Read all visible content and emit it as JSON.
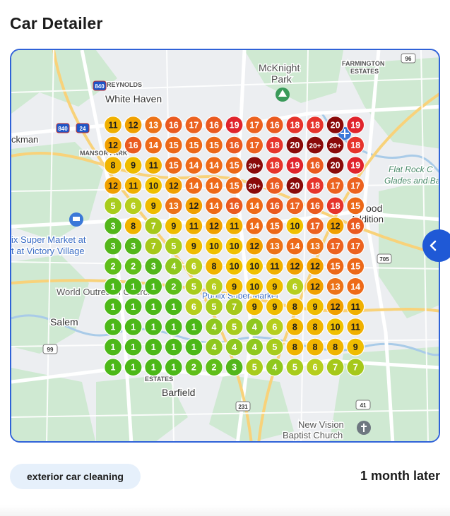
{
  "card": {
    "title": "Car Detailer",
    "keyword": "exterior car cleaning",
    "time_label": "1 month later"
  },
  "map": {
    "place_labels": [
      {
        "key": "mcknight",
        "text": "McKnight"
      },
      {
        "key": "park",
        "text": "Park"
      },
      {
        "key": "farmington",
        "text": "FARMINGTON"
      },
      {
        "key": "estates_top",
        "text": "ESTATES"
      },
      {
        "key": "reynolds",
        "text": "REYNOLDS"
      },
      {
        "key": "white_haven",
        "text": "White Haven"
      },
      {
        "key": "ckman",
        "text": "ckman"
      },
      {
        "key": "mansor",
        "text": "MANSOR PARK"
      },
      {
        "key": "flat_rock",
        "text": "Flat Rock C"
      },
      {
        "key": "glades",
        "text": "Glades and Barr"
      },
      {
        "key": "ood",
        "text": "ood"
      },
      {
        "key": "addition",
        "text": "Addition"
      },
      {
        "key": "super_market_1",
        "text": "ix Super Market at"
      },
      {
        "key": "super_market_2",
        "text": "t at Victory Village"
      },
      {
        "key": "world_outreach",
        "text": "World Outreach Church"
      },
      {
        "key": "salem",
        "text": "Salem"
      },
      {
        "key": "estates_bottom",
        "text": "ESTATES"
      },
      {
        "key": "barfield",
        "text": "Barfield"
      },
      {
        "key": "new_vision",
        "text": "New Vision"
      },
      {
        "key": "baptist",
        "text": "Baptist Church"
      },
      {
        "key": "publix",
        "text": "Publix Super Market"
      }
    ],
    "road_shields": [
      {
        "key": "i840_top",
        "text": "840"
      },
      {
        "key": "i840_left",
        "text": "840"
      },
      {
        "key": "i24",
        "text": "24"
      },
      {
        "key": "r96",
        "text": "96"
      },
      {
        "key": "r705",
        "text": "705"
      },
      {
        "key": "r99",
        "text": "99"
      },
      {
        "key": "r231",
        "text": "231"
      },
      {
        "key": "r41",
        "text": "41"
      }
    ],
    "icons": [
      "tree-icon",
      "shopping-cart-icon",
      "place-of-worship-icon",
      "airport-icon"
    ],
    "colors": {
      "1": "#4cb818",
      "2": "#5fbe1a",
      "3": "#53b61a",
      "4": "#8fc81e",
      "5": "#a8cc1c",
      "6": "#b6ce1e",
      "7": "#a6c81a",
      "8": "#f0b400",
      "9": "#efbc00",
      "10": "#f0c000",
      "11": "#f0b000",
      "12": "#f0a000",
      "13": "#ec7218",
      "14": "#ee6a18",
      "15": "#ec6818",
      "16": "#ea5a20",
      "17": "#ec6220",
      "18": "#e6342c",
      "19": "#e0242c",
      "20": "#8a0a0a",
      "20+": "#8a0a0a"
    }
  },
  "ranking_grid": {
    "rows": 13,
    "cols": 13,
    "values": [
      [
        "11",
        "12",
        "13",
        "16",
        "17",
        "16",
        "19",
        "17",
        "16",
        "18",
        "18",
        "20",
        "19"
      ],
      [
        "12",
        "16",
        "14",
        "15",
        "15",
        "15",
        "16",
        "17",
        "18",
        "20",
        "20+",
        "20+",
        "18"
      ],
      [
        "8",
        "9",
        "11",
        "15",
        "14",
        "14",
        "15",
        "20+",
        "18",
        "19",
        "16",
        "20",
        "19"
      ],
      [
        "12",
        "11",
        "10",
        "12",
        "14",
        "14",
        "15",
        "20+",
        "16",
        "20",
        "18",
        "17",
        "17"
      ],
      [
        "5",
        "6",
        "9",
        "13",
        "12",
        "14",
        "16",
        "14",
        "16",
        "17",
        "16",
        "18",
        "15"
      ],
      [
        "3",
        "8",
        "7",
        "9",
        "11",
        "12",
        "11",
        "14",
        "15",
        "10",
        "17",
        "12",
        "16"
      ],
      [
        "3",
        "3",
        "7",
        "5",
        "9",
        "10",
        "10",
        "12",
        "13",
        "14",
        "13",
        "17",
        "17"
      ],
      [
        "2",
        "2",
        "3",
        "4",
        "6",
        "8",
        "10",
        "10",
        "11",
        "12",
        "12",
        "15",
        "15"
      ],
      [
        "1",
        "1",
        "1",
        "2",
        "5",
        "6",
        "9",
        "10",
        "9",
        "6",
        "12",
        "13",
        "14"
      ],
      [
        "1",
        "1",
        "1",
        "1",
        "6",
        "5",
        "7",
        "9",
        "9",
        "8",
        "9",
        "12",
        "11"
      ],
      [
        "1",
        "1",
        "1",
        "1",
        "1",
        "4",
        "5",
        "4",
        "6",
        "8",
        "8",
        "10",
        "11"
      ],
      [
        "1",
        "1",
        "1",
        "1",
        "1",
        "4",
        "4",
        "4",
        "5",
        "8",
        "8",
        "8",
        "9"
      ],
      [
        "1",
        "1",
        "1",
        "1",
        "2",
        "2",
        "3",
        "5",
        "4",
        "5",
        "6",
        "7",
        "7"
      ]
    ]
  }
}
